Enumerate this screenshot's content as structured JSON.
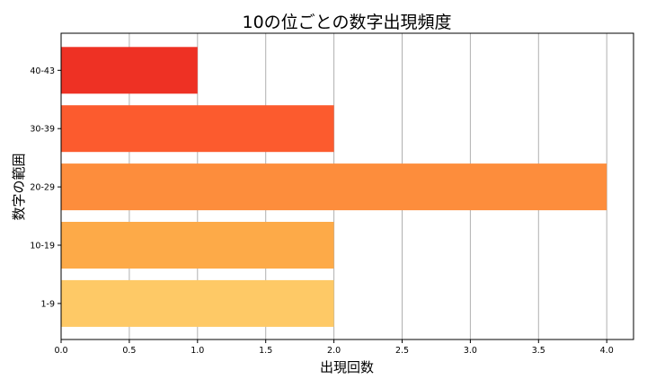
{
  "chart_data": {
    "type": "bar",
    "orientation": "horizontal",
    "title": "10の位ごとの数字出現頻度",
    "xlabel": "出現回数",
    "ylabel": "数字の範囲",
    "categories": [
      "1-9",
      "10-19",
      "20-29",
      "30-39",
      "40-43"
    ],
    "values": [
      2,
      2,
      4,
      2,
      1
    ],
    "colors": [
      "#fec966",
      "#fdaa48",
      "#fd8d3c",
      "#fc5b2e",
      "#ee3124"
    ],
    "xlim": [
      0,
      4.2
    ],
    "xticks": [
      "0.0",
      "0.5",
      "1.0",
      "1.5",
      "2.0",
      "2.5",
      "3.0",
      "3.5",
      "4.0"
    ],
    "grid": "x-only"
  }
}
